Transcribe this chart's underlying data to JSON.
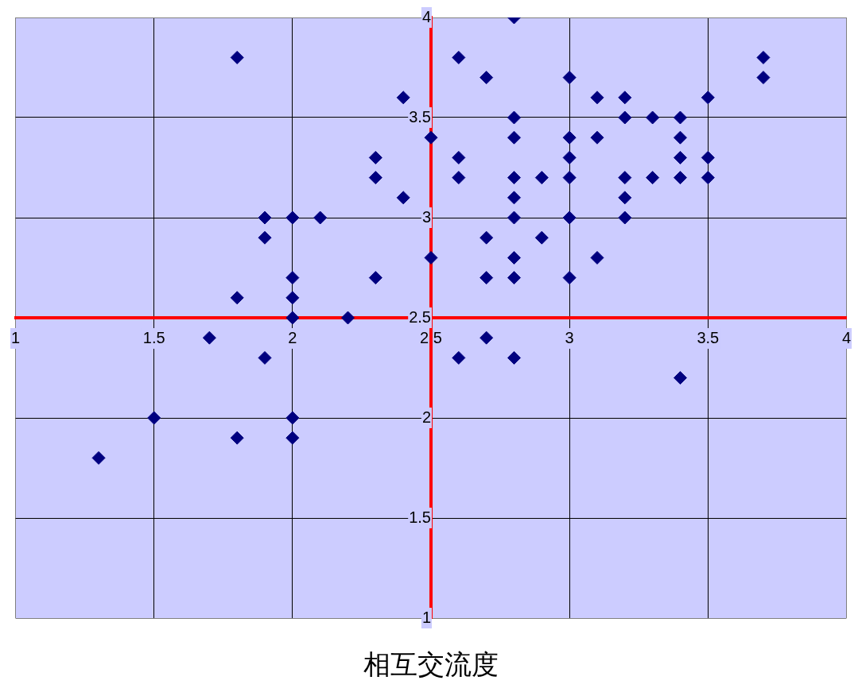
{
  "chart_data": {
    "type": "scatter",
    "xlabel": "相互交流度",
    "x": [
      1.8,
      1.3,
      1.5,
      1.7,
      1.8,
      1.8,
      1.9,
      1.9,
      1.9,
      2.0,
      2.0,
      2.0,
      2.0,
      2.0,
      2.0,
      2.1,
      2.2,
      2.3,
      2.3,
      2.3,
      2.4,
      2.4,
      2.5,
      2.5,
      2.6,
      2.6,
      2.6,
      2.6,
      2.7,
      2.7,
      2.7,
      2.7,
      2.8,
      2.8,
      2.8,
      2.8,
      2.8,
      2.8,
      2.8,
      2.8,
      2.8,
      2.9,
      2.9,
      3.0,
      3.0,
      3.0,
      3.0,
      3.0,
      3.0,
      3.1,
      3.1,
      3.1,
      3.2,
      3.2,
      3.2,
      3.2,
      3.2,
      3.3,
      3.3,
      3.4,
      3.4,
      3.4,
      3.4,
      3.4,
      3.5,
      3.5,
      3.5,
      3.7,
      3.7
    ],
    "series": [
      {
        "color": "#000080",
        "values": [
          3.8,
          1.8,
          2.0,
          2.4,
          2.6,
          1.9,
          3.0,
          2.9,
          2.3,
          3.0,
          2.7,
          2.6,
          2.5,
          2.0,
          1.9,
          3.0,
          2.5,
          3.3,
          3.2,
          2.7,
          3.6,
          3.1,
          3.4,
          2.8,
          3.8,
          3.3,
          3.2,
          2.3,
          3.7,
          2.9,
          2.7,
          2.4,
          4.0,
          3.5,
          3.4,
          3.2,
          3.1,
          3.0,
          2.8,
          2.7,
          2.3,
          3.2,
          2.9,
          3.7,
          3.4,
          3.3,
          3.2,
          3.0,
          2.7,
          3.6,
          3.4,
          2.8,
          3.6,
          3.5,
          3.2,
          3.1,
          3.0,
          3.5,
          3.2,
          3.5,
          3.4,
          3.3,
          3.2,
          2.2,
          3.6,
          3.3,
          3.2,
          3.8,
          3.7
        ]
      }
    ],
    "xlim": [
      1,
      4
    ],
    "ylim": [
      1,
      4
    ],
    "xticks": [
      1,
      1.5,
      2,
      2.5,
      3,
      3.5,
      4
    ],
    "yticks": [
      1,
      1.5,
      2,
      2.5,
      3,
      3.5,
      4
    ],
    "grid": true,
    "legend": false,
    "marker": "diamond"
  }
}
